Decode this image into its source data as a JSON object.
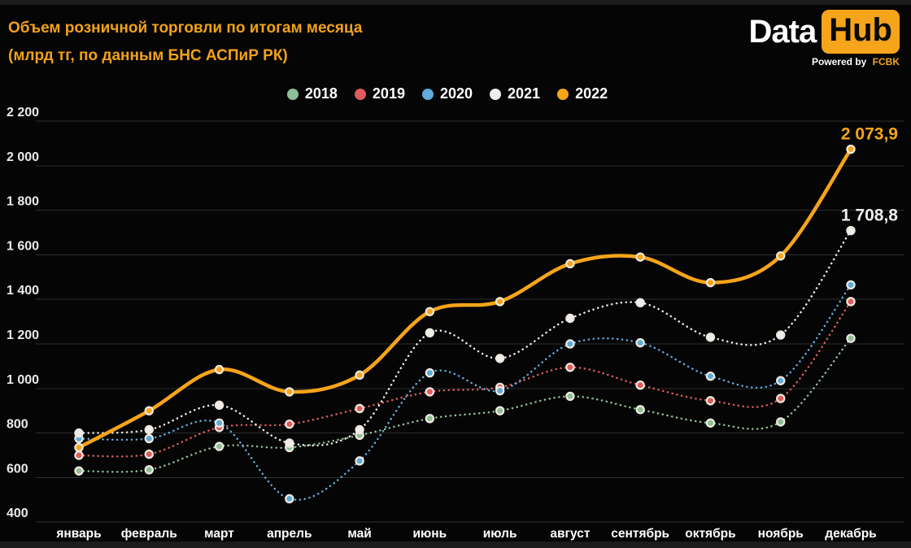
{
  "header": {
    "title_line1": "Объем розничной торговли по итогам месяца",
    "title_line2": "(млрд тг, по данным БНС АСПиР РК)"
  },
  "logo": {
    "word1": "Data",
    "word2": "Hub",
    "tagline_prefix": "Powered by",
    "tagline_brand": "FCBK"
  },
  "colors": {
    "background": "#050505",
    "accent_orange": "#f6a41a",
    "grid_line": "#2d2d2d",
    "axis_text": "#eaeaea",
    "title_text": "#f2a217",
    "marker_ring": "#efe9de",
    "edge_strip": "#1c1c1c"
  },
  "chart_data": {
    "type": "line",
    "title": "Объем розничной торговли по итогам месяца (млрд тг, по данным БНС АСПиР РК)",
    "categories": [
      "январь",
      "февраль",
      "март",
      "апрель",
      "май",
      "июнь",
      "июль",
      "август",
      "сентябрь",
      "октябрь",
      "ноябрь",
      "декабрь"
    ],
    "series": [
      {
        "name": "2018",
        "color": "#8fbf97",
        "style": "dotted",
        "values": [
          630,
          635,
          740,
          735,
          790,
          865,
          900,
          965,
          905,
          845,
          850,
          1225
        ]
      },
      {
        "name": "2019",
        "color": "#de5c5c",
        "style": "dotted",
        "values": [
          700,
          705,
          825,
          840,
          910,
          985,
          1005,
          1095,
          1015,
          945,
          955,
          1390
        ]
      },
      {
        "name": "2020",
        "color": "#5fabda",
        "style": "dotted",
        "values": [
          775,
          775,
          845,
          505,
          675,
          1070,
          990,
          1200,
          1205,
          1055,
          1035,
          1465
        ]
      },
      {
        "name": "2021",
        "color": "#ededed",
        "style": "dotted",
        "values": [
          800,
          815,
          925,
          755,
          815,
          1250,
          1135,
          1315,
          1385,
          1230,
          1240,
          1708.8
        ]
      },
      {
        "name": "2022",
        "color": "#f6a41a",
        "style": "solid",
        "values": [
          735,
          900,
          1085,
          985,
          1060,
          1345,
          1390,
          1560,
          1590,
          1475,
          1595,
          2073.9
        ]
      }
    ],
    "ylim": [
      400,
      2200
    ],
    "ytick_step": 200,
    "ytick_labels": [
      "2 200",
      "2 000",
      "1 800",
      "1 600",
      "1 400",
      "1 200",
      "1 000",
      "800",
      "600",
      "400"
    ],
    "grid": "horizontal",
    "legend_position": "top",
    "annotations": [
      {
        "text": "2 073,9",
        "series": "2022",
        "month_index": 11,
        "value": 2073.9
      },
      {
        "text": "1 708,8",
        "series": "2021",
        "month_index": 11,
        "value": 1708.8
      }
    ]
  }
}
